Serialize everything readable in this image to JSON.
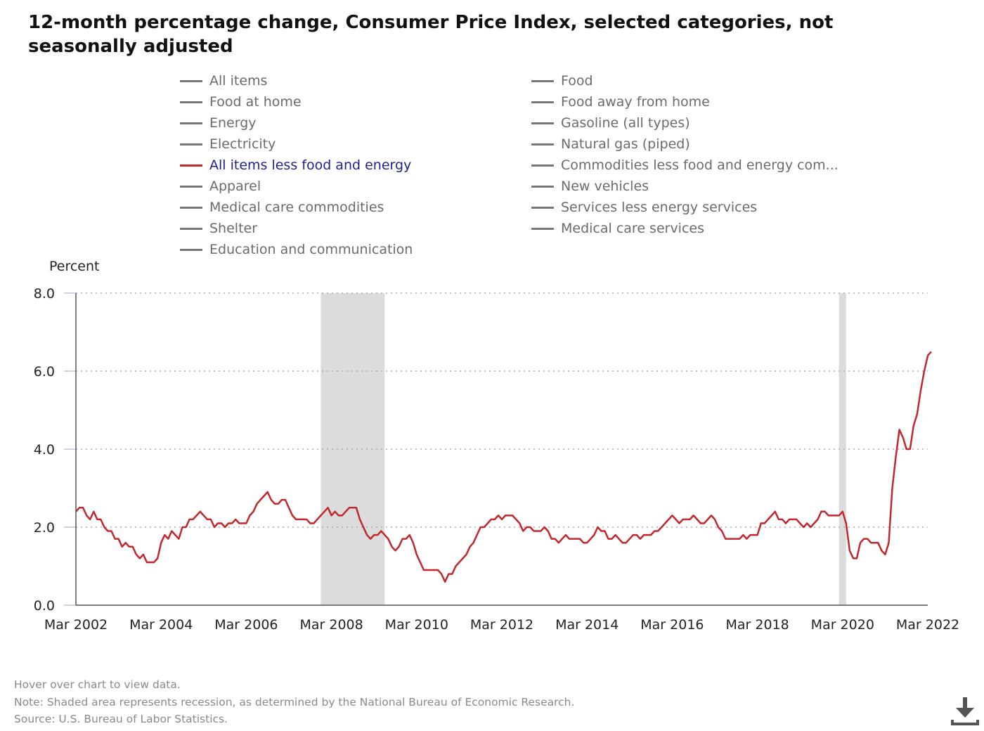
{
  "title": "12-month percentage change, Consumer Price Index, selected categories, not seasonally adjusted",
  "legend": [
    {
      "label": "All items",
      "active": false
    },
    {
      "label": "Food",
      "active": false
    },
    {
      "label": "Food at home",
      "active": false
    },
    {
      "label": "Food away from home",
      "active": false
    },
    {
      "label": "Energy",
      "active": false
    },
    {
      "label": "Gasoline (all types)",
      "active": false
    },
    {
      "label": "Electricity",
      "active": false
    },
    {
      "label": "Natural gas (piped)",
      "active": false
    },
    {
      "label": "All items less food and energy",
      "active": true
    },
    {
      "label": "Commodities less food and energy com...",
      "active": false
    },
    {
      "label": "Apparel",
      "active": false
    },
    {
      "label": "New vehicles",
      "active": false
    },
    {
      "label": "Medical care commodities",
      "active": false
    },
    {
      "label": "Services less energy services",
      "active": false
    },
    {
      "label": "Shelter",
      "active": false
    },
    {
      "label": "Medical care services",
      "active": false
    },
    {
      "label": "Education and communication",
      "active": false
    }
  ],
  "notes": {
    "hover": "Hover over chart to view data.",
    "note": "Note: Shaded area represents recession, as determined by the National Bureau of Economic Research.",
    "source": "Source: U.S. Bureau of Labor Statistics."
  },
  "icons": {
    "download": "download-icon"
  },
  "colors": {
    "series": "#c1272d",
    "recession": "#dcdcdc",
    "active_legend_text": "#1f1f8f",
    "inactive_legend": "#777777"
  },
  "chart_data": {
    "type": "line",
    "ylabel": "Percent",
    "ylim": [
      0,
      8
    ],
    "yticks": [
      "0.0",
      "2.0",
      "4.0",
      "6.0",
      "8.0"
    ],
    "xticks": [
      "Mar 2002",
      "Mar 2004",
      "Mar 2006",
      "Mar 2008",
      "Mar 2010",
      "Mar 2012",
      "Mar 2014",
      "Mar 2016",
      "Mar 2018",
      "Mar 2020",
      "Mar 2022"
    ],
    "x_start": "Mar 2002",
    "x_end": "Mar 2022",
    "grid": true,
    "recessions": [
      {
        "start": "Dec 2007",
        "end": "Jun 2009"
      },
      {
        "start": "Feb 2020",
        "end": "Apr 2020"
      }
    ],
    "series": [
      {
        "name": "All items less food and energy",
        "frequency": "monthly",
        "values": [
          2.4,
          2.5,
          2.5,
          2.3,
          2.2,
          2.4,
          2.2,
          2.2,
          2.0,
          1.9,
          1.9,
          1.7,
          1.7,
          1.5,
          1.6,
          1.5,
          1.5,
          1.3,
          1.2,
          1.3,
          1.1,
          1.1,
          1.1,
          1.2,
          1.6,
          1.8,
          1.7,
          1.9,
          1.8,
          1.7,
          2.0,
          2.0,
          2.2,
          2.2,
          2.3,
          2.4,
          2.3,
          2.2,
          2.2,
          2.0,
          2.1,
          2.1,
          2.0,
          2.1,
          2.1,
          2.2,
          2.1,
          2.1,
          2.1,
          2.3,
          2.4,
          2.6,
          2.7,
          2.8,
          2.9,
          2.7,
          2.6,
          2.6,
          2.7,
          2.7,
          2.5,
          2.3,
          2.2,
          2.2,
          2.2,
          2.2,
          2.1,
          2.1,
          2.2,
          2.3,
          2.4,
          2.5,
          2.3,
          2.4,
          2.3,
          2.3,
          2.4,
          2.5,
          2.5,
          2.5,
          2.2,
          2.0,
          1.8,
          1.7,
          1.8,
          1.8,
          1.9,
          1.8,
          1.7,
          1.5,
          1.4,
          1.5,
          1.7,
          1.7,
          1.8,
          1.6,
          1.3,
          1.1,
          0.9,
          0.9,
          0.9,
          0.9,
          0.9,
          0.8,
          0.6,
          0.8,
          0.8,
          1.0,
          1.1,
          1.2,
          1.3,
          1.5,
          1.6,
          1.8,
          2.0,
          2.0,
          2.1,
          2.2,
          2.2,
          2.3,
          2.2,
          2.3,
          2.3,
          2.3,
          2.2,
          2.1,
          1.9,
          2.0,
          2.0,
          1.9,
          1.9,
          1.9,
          2.0,
          1.9,
          1.7,
          1.7,
          1.6,
          1.7,
          1.8,
          1.7,
          1.7,
          1.7,
          1.7,
          1.6,
          1.6,
          1.7,
          1.8,
          2.0,
          1.9,
          1.9,
          1.7,
          1.7,
          1.8,
          1.7,
          1.6,
          1.6,
          1.7,
          1.8,
          1.8,
          1.7,
          1.8,
          1.8,
          1.8,
          1.9,
          1.9,
          2.0,
          2.1,
          2.2,
          2.3,
          2.2,
          2.1,
          2.2,
          2.2,
          2.2,
          2.3,
          2.2,
          2.1,
          2.1,
          2.2,
          2.3,
          2.2,
          2.0,
          1.9,
          1.7,
          1.7,
          1.7,
          1.7,
          1.7,
          1.8,
          1.7,
          1.8,
          1.8,
          1.8,
          2.1,
          2.1,
          2.2,
          2.3,
          2.4,
          2.2,
          2.2,
          2.1,
          2.2,
          2.2,
          2.2,
          2.1,
          2.0,
          2.1,
          2.0,
          2.1,
          2.2,
          2.4,
          2.4,
          2.3,
          2.3,
          2.3,
          2.3,
          2.4,
          2.1,
          1.4,
          1.2,
          1.2,
          1.6,
          1.7,
          1.7,
          1.6,
          1.6,
          1.6,
          1.4,
          1.3,
          1.6,
          3.0,
          3.8,
          4.5,
          4.3,
          4.0,
          4.0,
          4.6,
          4.9,
          5.5,
          6.0,
          6.4,
          6.5
        ]
      }
    ]
  }
}
